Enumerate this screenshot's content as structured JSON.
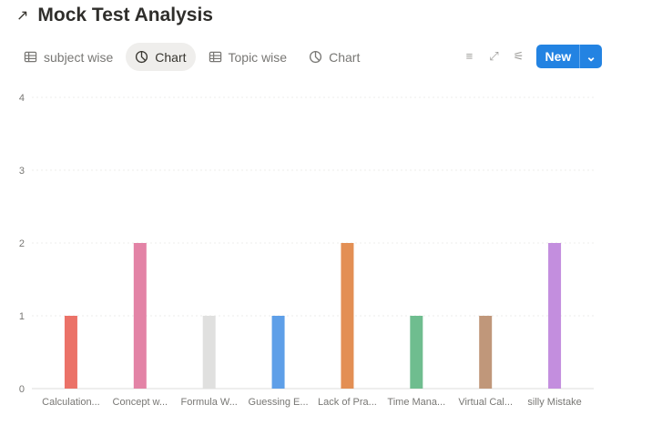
{
  "header": {
    "title": "Mock Test Analysis",
    "icon": "arrow-up-right-icon"
  },
  "tabs": [
    {
      "label": "subject wise",
      "icon": "table-icon"
    },
    {
      "label": "Chart",
      "icon": "pie-chart-icon",
      "active": true
    },
    {
      "label": "Topic wise",
      "icon": "table-icon"
    },
    {
      "label": "Chart",
      "icon": "pie-chart-icon"
    }
  ],
  "toolbar": {
    "new_label": "New"
  },
  "chart_data": {
    "type": "bar",
    "categories": [
      "Calculation...",
      "Concept w...",
      "Formula W...",
      "Guessing E...",
      "Lack of Pra...",
      "Time Mana...",
      "Virtual Cal...",
      "silly Mistake"
    ],
    "values": [
      1,
      2,
      1,
      1,
      2,
      1,
      1,
      2
    ],
    "colors": [
      "#eb7268",
      "#e383a6",
      "#e0e0df",
      "#5e9fe8",
      "#e38f54",
      "#6fbd8f",
      "#c0977a",
      "#c38ede"
    ],
    "yticks": [
      0,
      1,
      2,
      3,
      4
    ],
    "ylim": [
      0,
      4
    ],
    "grid": true,
    "title": "",
    "xlabel": "",
    "ylabel": ""
  }
}
